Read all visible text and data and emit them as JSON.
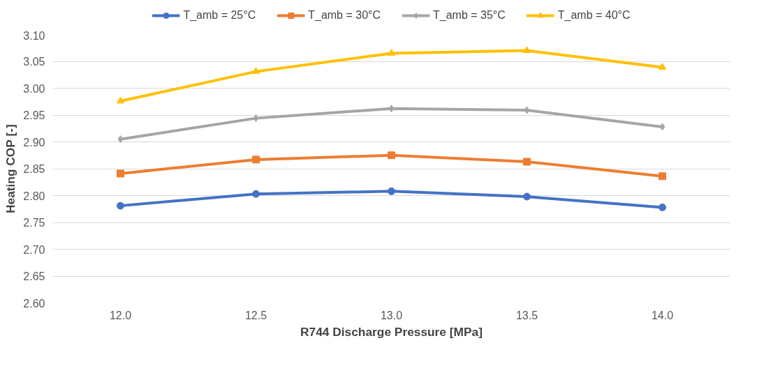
{
  "chart_data": {
    "type": "line",
    "xlabel": "R744 Discharge Pressure [MPa]",
    "ylabel": "Heating COP [-]",
    "categories": [
      "12.0",
      "12.5",
      "13.0",
      "13.5",
      "14.0"
    ],
    "series": [
      {
        "name": "T_amb = 25°C",
        "color": "#4472c4",
        "marker": "circle",
        "values": [
          2.781,
          2.803,
          2.808,
          2.798,
          2.778
        ]
      },
      {
        "name": "T_amb = 30°C",
        "color": "#ed7d31",
        "marker": "square",
        "values": [
          2.841,
          2.867,
          2.875,
          2.863,
          2.836
        ]
      },
      {
        "name": "T_amb = 35°C",
        "color": "#a5a5a5",
        "marker": "diamond",
        "values": [
          2.905,
          2.944,
          2.962,
          2.959,
          2.928
        ]
      },
      {
        "name": "T_amb = 40°C",
        "color": "#ffc000",
        "marker": "triangle",
        "values": [
          2.976,
          3.031,
          3.065,
          3.07,
          3.039
        ]
      }
    ],
    "ylim": [
      2.6,
      3.1
    ],
    "yticks": [
      {
        "value": 2.6,
        "label": "2.60"
      },
      {
        "value": 2.65,
        "label": "2.65"
      },
      {
        "value": 2.7,
        "label": "2.70"
      },
      {
        "value": 2.75,
        "label": "2.75"
      },
      {
        "value": 2.8,
        "label": "2.80"
      },
      {
        "value": 2.85,
        "label": "2.85"
      },
      {
        "value": 2.9,
        "label": "2.90"
      },
      {
        "value": 2.95,
        "label": "2.95"
      },
      {
        "value": 3.0,
        "label": "3.00"
      },
      {
        "value": 3.05,
        "label": "3.05"
      },
      {
        "value": 3.1,
        "label": "3.10"
      }
    ],
    "grid": "y",
    "legend": "top",
    "line_style": "solid"
  }
}
